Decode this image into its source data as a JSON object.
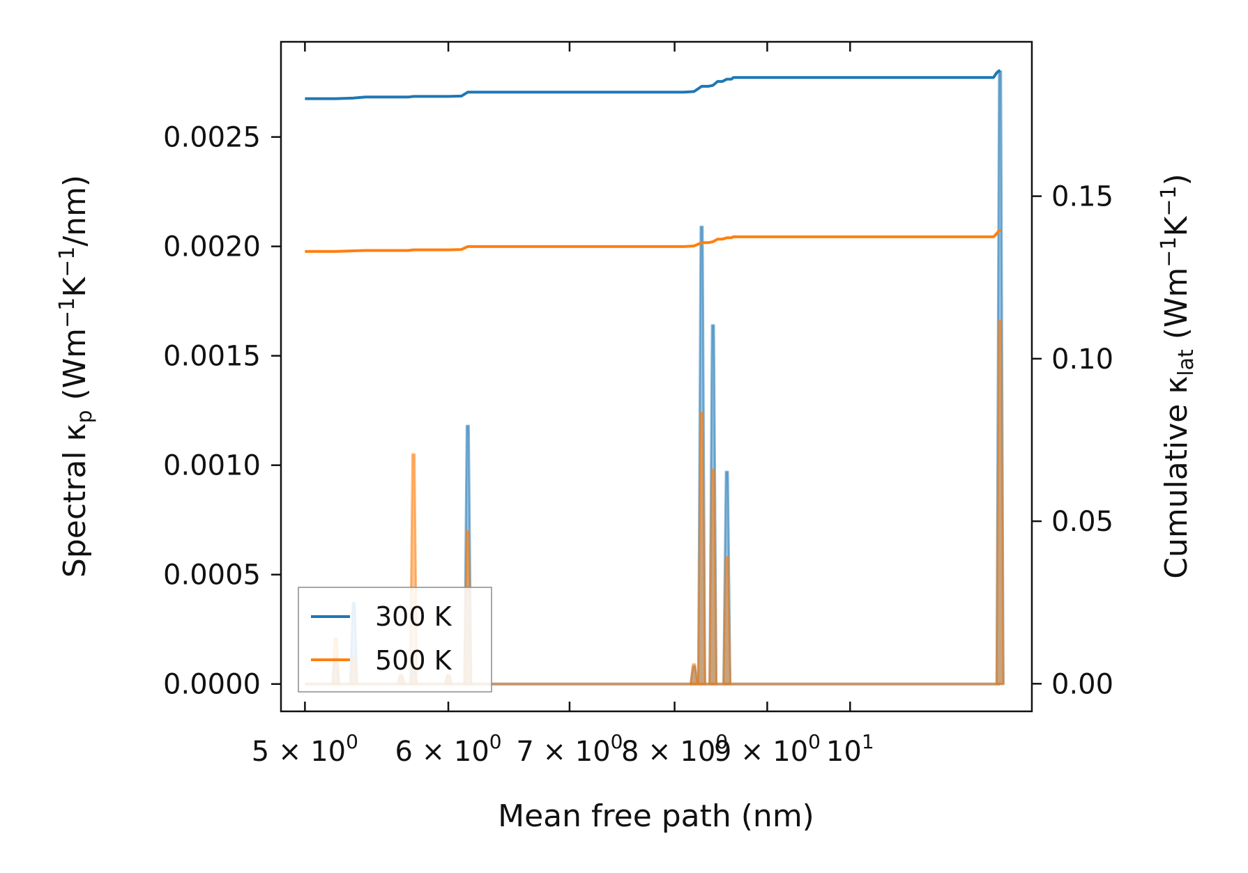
{
  "chart_data": {
    "type": "line",
    "xscale": "log",
    "xlim": [
      4.85,
      12.6
    ],
    "ylim_left": [
      -0.000125,
      0.002935
    ],
    "ylim_right": [
      -0.0085,
      0.1975
    ],
    "xlabel": "Mean free path (nm)",
    "ylabel_left": {
      "pre": "Spectral κ",
      "sub": "p",
      "mid": " (Wm",
      "sup1": "−1",
      "mid2": "K",
      "sup2": "−1",
      "post": "/nm)"
    },
    "ylabel_right": {
      "pre": "Cumulative κ",
      "sub": "lat",
      "mid": " (Wm",
      "sup1": "−1",
      "mid2": "K",
      "sup2": "−1",
      "post": ")"
    },
    "x_ticks": [
      {
        "value": 5,
        "base": "5 × 10",
        "exp": "0"
      },
      {
        "value": 6,
        "base": "6 × 10",
        "exp": "0"
      },
      {
        "value": 7,
        "base": "7 × 10",
        "exp": "0"
      },
      {
        "value": 8,
        "base": "8 × 10",
        "exp": "0"
      },
      {
        "value": 9,
        "base": "9 × 10",
        "exp": "0"
      },
      {
        "value": 10,
        "base": "10",
        "exp": "1"
      }
    ],
    "y_ticks_left": [
      {
        "value": 0,
        "label": "0.0000"
      },
      {
        "value": 0.0005,
        "label": "0.0005"
      },
      {
        "value": 0.001,
        "label": "0.0010"
      },
      {
        "value": 0.0015,
        "label": "0.0015"
      },
      {
        "value": 0.002,
        "label": "0.0020"
      },
      {
        "value": 0.0025,
        "label": "0.0025"
      }
    ],
    "y_ticks_right": [
      {
        "value": 0,
        "label": "0.00"
      },
      {
        "value": 0.05,
        "label": "0.05"
      },
      {
        "value": 0.1,
        "label": "0.10"
      },
      {
        "value": 0.15,
        "label": "0.15"
      }
    ],
    "legend": {
      "position": "lower-left",
      "entries": [
        "300 K",
        "500 K"
      ]
    },
    "cumulative_series": [
      {
        "name": "300 K",
        "color": "#1f77b4",
        "x": [
          5.0,
          5.2,
          5.32,
          5.4,
          5.7,
          5.74,
          6.0,
          6.1,
          6.15,
          7.5,
          8.1,
          8.2,
          8.28,
          8.35,
          8.4,
          8.45,
          8.5,
          8.55,
          8.6,
          8.62,
          9.5,
          12.0,
          12.05,
          12.1
        ],
        "y": [
          0.18,
          0.18,
          0.1802,
          0.1805,
          0.1805,
          0.1807,
          0.1807,
          0.1808,
          0.182,
          0.182,
          0.182,
          0.1822,
          0.1838,
          0.1838,
          0.1841,
          0.1853,
          0.1853,
          0.186,
          0.186,
          0.1865,
          0.1865,
          0.1865,
          0.188,
          0.1888
        ]
      },
      {
        "name": "500 K",
        "color": "#ff7f0e",
        "x": [
          5.0,
          5.2,
          5.32,
          5.4,
          5.7,
          5.74,
          6.0,
          6.1,
          6.15,
          7.5,
          8.1,
          8.2,
          8.28,
          8.35,
          8.4,
          8.45,
          8.5,
          8.55,
          8.6,
          8.62,
          9.5,
          12.0,
          12.05,
          12.1
        ],
        "y": [
          0.133,
          0.133,
          0.1332,
          0.1333,
          0.1333,
          0.1335,
          0.1335,
          0.1336,
          0.1345,
          0.1345,
          0.1345,
          0.1347,
          0.1357,
          0.1357,
          0.136,
          0.1368,
          0.1368,
          0.1372,
          0.1372,
          0.1375,
          0.1375,
          0.1375,
          0.1385,
          0.1398
        ]
      }
    ],
    "spectral_series": [
      {
        "name": "300 K",
        "color": "#1f77b4",
        "baseline_x": [
          5.0,
          12.1
        ],
        "peaks": [
          {
            "x": 5.2,
            "y": 0.00012
          },
          {
            "x": 5.32,
            "y": 0.00037
          },
          {
            "x": 5.65,
            "y": 4e-05
          },
          {
            "x": 5.74,
            "y": 8e-05
          },
          {
            "x": 6.0,
            "y": 4e-05
          },
          {
            "x": 6.15,
            "y": 0.00118
          },
          {
            "x": 8.2,
            "y": 8e-05
          },
          {
            "x": 8.28,
            "y": 0.00209
          },
          {
            "x": 8.4,
            "y": 0.00164
          },
          {
            "x": 8.55,
            "y": 0.00097
          },
          {
            "x": 12.1,
            "y": 0.0028
          }
        ]
      },
      {
        "name": "500 K",
        "color": "#ff7f0e",
        "baseline_x": [
          5.0,
          12.1
        ],
        "peaks": [
          {
            "x": 5.2,
            "y": 0.00021
          },
          {
            "x": 5.32,
            "y": 0.00012
          },
          {
            "x": 5.65,
            "y": 4e-05
          },
          {
            "x": 5.74,
            "y": 0.00105
          },
          {
            "x": 6.0,
            "y": 4e-05
          },
          {
            "x": 6.15,
            "y": 0.0007
          },
          {
            "x": 8.2,
            "y": 9e-05
          },
          {
            "x": 8.28,
            "y": 0.00124
          },
          {
            "x": 8.4,
            "y": 0.00098
          },
          {
            "x": 8.55,
            "y": 0.00058
          },
          {
            "x": 12.1,
            "y": 0.00166
          }
        ]
      }
    ]
  }
}
